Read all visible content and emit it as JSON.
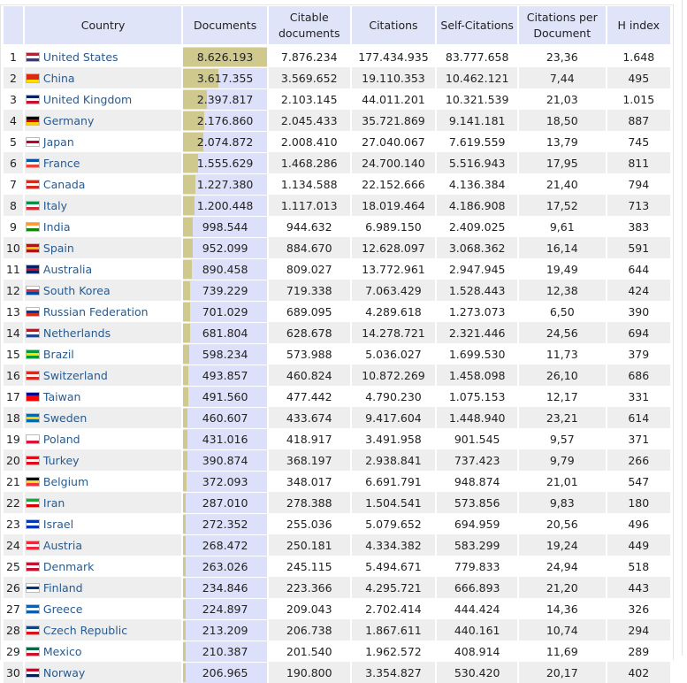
{
  "headers": {
    "rank": "",
    "country": "Country",
    "documents": "Documents",
    "citable": "Citable documents",
    "citations": "Citations",
    "self": "Self-Citations",
    "cpd": "Citations per Document",
    "h": "H index"
  },
  "colors": {
    "bar": "#cfc98e",
    "docs_bg": "#dde0fa",
    "header_bg": "#e0e4f8",
    "link": "#2a5a8c"
  },
  "max_documents": 8626193,
  "rows": [
    {
      "rank": "1",
      "country": "United States",
      "flag": [
        "#b22234",
        "#ffffff",
        "#3c3b6e"
      ],
      "documents": "8.626.193",
      "docs_value": 8626193,
      "citable": "7.876.234",
      "citations": "177.434.935",
      "self": "83.777.658",
      "cpd": "23,36",
      "h": "1.648"
    },
    {
      "rank": "2",
      "country": "China",
      "flag": [
        "#de2910",
        "#de2910",
        "#ffde00"
      ],
      "documents": "3.617.355",
      "docs_value": 3617355,
      "citable": "3.569.652",
      "citations": "19.110.353",
      "self": "10.462.121",
      "cpd": "7,44",
      "h": "495"
    },
    {
      "rank": "3",
      "country": "United Kingdom",
      "flag": [
        "#012169",
        "#ffffff",
        "#c8102e"
      ],
      "documents": "2.397.817",
      "docs_value": 2397817,
      "citable": "2.103.145",
      "citations": "44.011.201",
      "self": "10.321.539",
      "cpd": "21,03",
      "h": "1.015"
    },
    {
      "rank": "4",
      "country": "Germany",
      "flag": [
        "#000000",
        "#dd0000",
        "#ffce00"
      ],
      "documents": "2.176.860",
      "docs_value": 2176860,
      "citable": "2.045.433",
      "citations": "35.721.869",
      "self": "9.141.181",
      "cpd": "18,50",
      "h": "887"
    },
    {
      "rank": "5",
      "country": "Japan",
      "flag": [
        "#ffffff",
        "#bc002d",
        "#ffffff"
      ],
      "documents": "2.074.872",
      "docs_value": 2074872,
      "citable": "2.008.410",
      "citations": "27.040.067",
      "self": "7.619.559",
      "cpd": "13,79",
      "h": "745"
    },
    {
      "rank": "6",
      "country": "France",
      "flag": [
        "#0055a4",
        "#ffffff",
        "#ef4135"
      ],
      "documents": "1.555.629",
      "docs_value": 1555629,
      "citable": "1.468.286",
      "citations": "24.700.140",
      "self": "5.516.943",
      "cpd": "17,95",
      "h": "811"
    },
    {
      "rank": "7",
      "country": "Canada",
      "flag": [
        "#d52b1e",
        "#ffffff",
        "#d52b1e"
      ],
      "documents": "1.227.380",
      "docs_value": 1227380,
      "citable": "1.134.588",
      "citations": "22.152.666",
      "self": "4.136.384",
      "cpd": "21,40",
      "h": "794"
    },
    {
      "rank": "8",
      "country": "Italy",
      "flag": [
        "#009246",
        "#ffffff",
        "#ce2b37"
      ],
      "documents": "1.200.448",
      "docs_value": 1200448,
      "citable": "1.117.013",
      "citations": "18.019.464",
      "self": "4.186.908",
      "cpd": "17,52",
      "h": "713"
    },
    {
      "rank": "9",
      "country": "India",
      "flag": [
        "#ff9933",
        "#ffffff",
        "#138808"
      ],
      "documents": "998.544",
      "docs_value": 998544,
      "citable": "944.632",
      "citations": "6.989.150",
      "self": "2.409.025",
      "cpd": "9,61",
      "h": "383"
    },
    {
      "rank": "10",
      "country": "Spain",
      "flag": [
        "#aa151b",
        "#f1bf00",
        "#aa151b"
      ],
      "documents": "952.099",
      "docs_value": 952099,
      "citable": "884.670",
      "citations": "12.628.097",
      "self": "3.068.362",
      "cpd": "16,14",
      "h": "591"
    },
    {
      "rank": "11",
      "country": "Australia",
      "flag": [
        "#012169",
        "#c8102e",
        "#012169"
      ],
      "documents": "890.458",
      "docs_value": 890458,
      "citable": "809.027",
      "citations": "13.772.961",
      "self": "2.947.945",
      "cpd": "19,49",
      "h": "644"
    },
    {
      "rank": "12",
      "country": "South Korea",
      "flag": [
        "#ffffff",
        "#cd2e3a",
        "#0047a0"
      ],
      "documents": "739.229",
      "docs_value": 739229,
      "citable": "719.338",
      "citations": "7.063.429",
      "self": "1.528.443",
      "cpd": "12,38",
      "h": "424"
    },
    {
      "rank": "13",
      "country": "Russian Federation",
      "flag": [
        "#ffffff",
        "#0039a6",
        "#d52b1e"
      ],
      "documents": "701.029",
      "docs_value": 701029,
      "citable": "689.095",
      "citations": "4.289.618",
      "self": "1.273.073",
      "cpd": "6,50",
      "h": "390"
    },
    {
      "rank": "14",
      "country": "Netherlands",
      "flag": [
        "#ae1c28",
        "#ffffff",
        "#21468b"
      ],
      "documents": "681.804",
      "docs_value": 681804,
      "citable": "628.678",
      "citations": "14.278.721",
      "self": "2.321.446",
      "cpd": "24,56",
      "h": "694"
    },
    {
      "rank": "15",
      "country": "Brazil",
      "flag": [
        "#009c3b",
        "#ffdf00",
        "#009c3b"
      ],
      "documents": "598.234",
      "docs_value": 598234,
      "citable": "573.988",
      "citations": "5.036.027",
      "self": "1.699.530",
      "cpd": "11,73",
      "h": "379"
    },
    {
      "rank": "16",
      "country": "Switzerland",
      "flag": [
        "#da291c",
        "#ffffff",
        "#da291c"
      ],
      "documents": "493.857",
      "docs_value": 493857,
      "citable": "460.824",
      "citations": "10.872.269",
      "self": "1.458.098",
      "cpd": "26,10",
      "h": "686"
    },
    {
      "rank": "17",
      "country": "Taiwan",
      "flag": [
        "#000095",
        "#fe0000",
        "#fe0000"
      ],
      "documents": "491.560",
      "docs_value": 491560,
      "citable": "477.442",
      "citations": "4.790.230",
      "self": "1.075.153",
      "cpd": "12,17",
      "h": "331"
    },
    {
      "rank": "18",
      "country": "Sweden",
      "flag": [
        "#006aa7",
        "#fecc00",
        "#006aa7"
      ],
      "documents": "460.607",
      "docs_value": 460607,
      "citable": "433.674",
      "citations": "9.417.604",
      "self": "1.448.940",
      "cpd": "23,21",
      "h": "614"
    },
    {
      "rank": "19",
      "country": "Poland",
      "flag": [
        "#ffffff",
        "#ffffff",
        "#dc143c"
      ],
      "documents": "431.016",
      "docs_value": 431016,
      "citable": "418.917",
      "citations": "3.491.958",
      "self": "901.545",
      "cpd": "9,57",
      "h": "371"
    },
    {
      "rank": "20",
      "country": "Turkey",
      "flag": [
        "#e30a17",
        "#ffffff",
        "#e30a17"
      ],
      "documents": "390.874",
      "docs_value": 390874,
      "citable": "368.197",
      "citations": "2.938.841",
      "self": "737.423",
      "cpd": "9,79",
      "h": "266"
    },
    {
      "rank": "21",
      "country": "Belgium",
      "flag": [
        "#000000",
        "#fdda24",
        "#ef3340"
      ],
      "documents": "372.093",
      "docs_value": 372093,
      "citable": "348.017",
      "citations": "6.691.791",
      "self": "948.874",
      "cpd": "21,01",
      "h": "547"
    },
    {
      "rank": "22",
      "country": "Iran",
      "flag": [
        "#239f40",
        "#ffffff",
        "#da0000"
      ],
      "documents": "287.010",
      "docs_value": 287010,
      "citable": "278.388",
      "citations": "1.504.541",
      "self": "573.856",
      "cpd": "9,83",
      "h": "180"
    },
    {
      "rank": "23",
      "country": "Israel",
      "flag": [
        "#0038b8",
        "#ffffff",
        "#0038b8"
      ],
      "documents": "272.352",
      "docs_value": 272352,
      "citable": "255.036",
      "citations": "5.079.652",
      "self": "694.959",
      "cpd": "20,56",
      "h": "496"
    },
    {
      "rank": "24",
      "country": "Austria",
      "flag": [
        "#ed2939",
        "#ffffff",
        "#ed2939"
      ],
      "documents": "268.472",
      "docs_value": 268472,
      "citable": "250.181",
      "citations": "4.334.382",
      "self": "583.299",
      "cpd": "19,24",
      "h": "449"
    },
    {
      "rank": "25",
      "country": "Denmark",
      "flag": [
        "#c8102e",
        "#ffffff",
        "#c8102e"
      ],
      "documents": "263.026",
      "docs_value": 263026,
      "citable": "245.115",
      "citations": "5.494.671",
      "self": "779.833",
      "cpd": "24,94",
      "h": "518"
    },
    {
      "rank": "26",
      "country": "Finland",
      "flag": [
        "#ffffff",
        "#003580",
        "#ffffff"
      ],
      "documents": "234.846",
      "docs_value": 234846,
      "citable": "223.366",
      "citations": "4.295.721",
      "self": "666.893",
      "cpd": "21,20",
      "h": "443"
    },
    {
      "rank": "27",
      "country": "Greece",
      "flag": [
        "#0d5eaf",
        "#ffffff",
        "#0d5eaf"
      ],
      "documents": "224.897",
      "docs_value": 224897,
      "citable": "209.043",
      "citations": "2.702.414",
      "self": "444.424",
      "cpd": "14,36",
      "h": "326"
    },
    {
      "rank": "28",
      "country": "Czech Republic",
      "flag": [
        "#11457e",
        "#ffffff",
        "#d7141a"
      ],
      "documents": "213.209",
      "docs_value": 213209,
      "citable": "206.738",
      "citations": "1.867.611",
      "self": "440.161",
      "cpd": "10,74",
      "h": "294"
    },
    {
      "rank": "29",
      "country": "Mexico",
      "flag": [
        "#006847",
        "#ffffff",
        "#ce1126"
      ],
      "documents": "210.387",
      "docs_value": 210387,
      "citable": "201.540",
      "citations": "1.962.572",
      "self": "408.914",
      "cpd": "11,69",
      "h": "289"
    },
    {
      "rank": "30",
      "country": "Norway",
      "flag": [
        "#ba0c2f",
        "#ffffff",
        "#00205b"
      ],
      "documents": "206.965",
      "docs_value": 206965,
      "citable": "190.800",
      "citations": "3.354.827",
      "self": "530.420",
      "cpd": "20,17",
      "h": "402"
    }
  ]
}
